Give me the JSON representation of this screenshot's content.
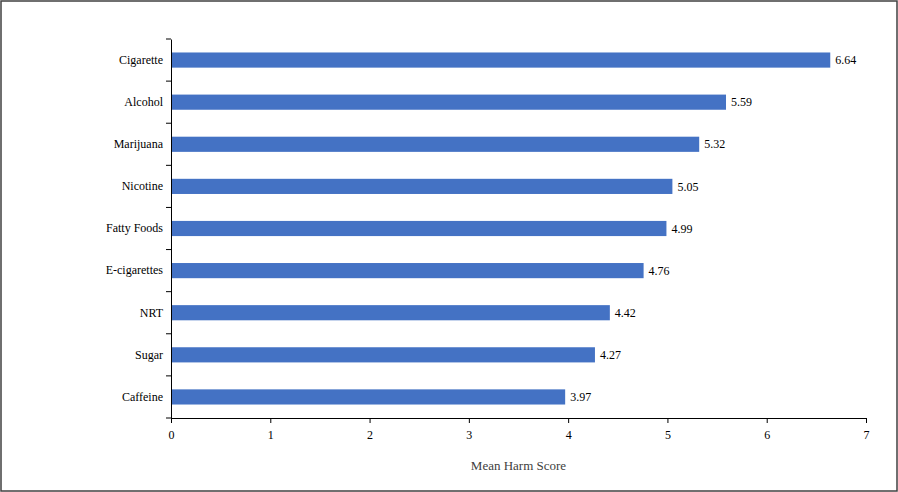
{
  "chart_data": {
    "type": "bar",
    "orientation": "horizontal",
    "categories": [
      "Cigarette",
      "Alcohol",
      "Marijuana",
      "Nicotine",
      "Fatty Foods",
      "E-cigarettes",
      "NRT",
      "Sugar",
      "Caffeine"
    ],
    "values": [
      6.64,
      5.59,
      5.32,
      5.05,
      4.99,
      4.76,
      4.42,
      4.27,
      3.97
    ],
    "color": "#4472c4",
    "x_label": "Mean Harm Score",
    "xlim": [
      0,
      7
    ],
    "xticks": [
      0,
      1,
      2,
      3,
      4,
      5,
      6,
      7
    ],
    "grid": false,
    "data_labels": true
  }
}
